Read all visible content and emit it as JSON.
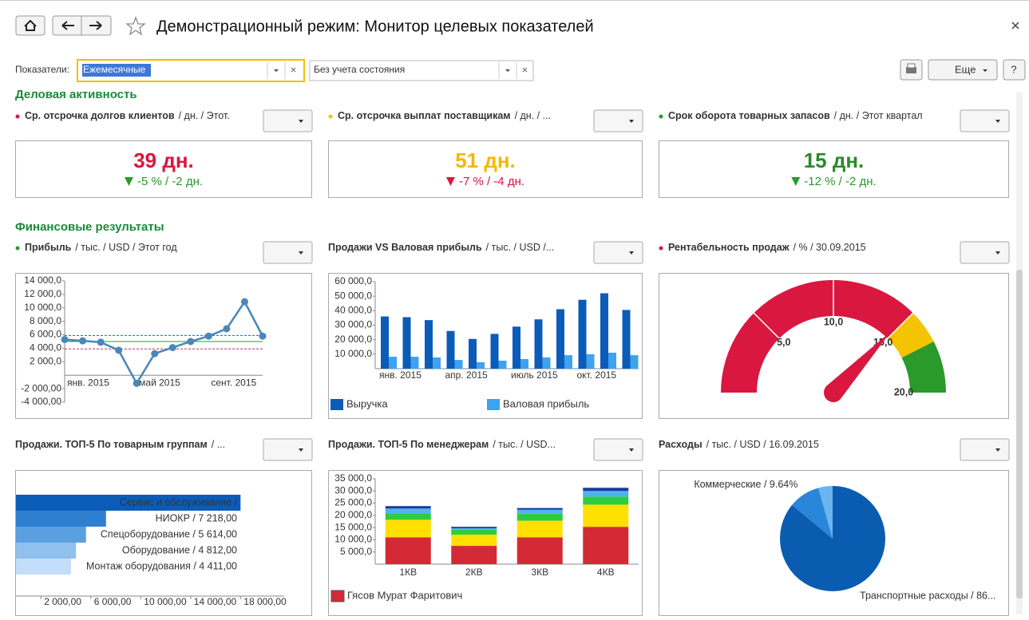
{
  "header": {
    "title": "Демонстрационный режим: Монитор целевых показателей"
  },
  "filters": {
    "label": "Показатели:",
    "period": "Ежемесячные",
    "state": "Без учета состояния",
    "more": "Еще",
    "help": "?"
  },
  "sections": [
    {
      "title": "Деловая активность",
      "widgets": [
        {
          "type": "kpi",
          "status_color": "#d9173f",
          "title": "Ср. отсрочка долгов клиентов",
          "subtitle": "/ дн. / Этот.",
          "value": "39 дн.",
          "value_color": "#d9173f",
          "change": "-5 % / -2 дн.",
          "change_color": "#2a9a2a"
        },
        {
          "type": "kpi",
          "status_color": "#f5c400",
          "title": "Ср. отсрочка выплат поставщикам",
          "subtitle": "/ дн. / ...",
          "value": "51 дн.",
          "value_color": "#f5b800",
          "change": "-7 % / -4 дн.",
          "change_color": "#d9173f"
        },
        {
          "type": "kpi",
          "status_color": "#2a9a2a",
          "title": "Срок оборота товарных запасов",
          "subtitle": "/ дн. / Этот квартал",
          "value": "15 дн.",
          "value_color": "#2a8a2a",
          "change": "-12 % / -2 дн.",
          "change_color": "#2a9a2a"
        }
      ]
    },
    {
      "title": "Финансовые результаты",
      "widgets": [
        {
          "type": "line",
          "status_color": "#2a9a2a",
          "title": "Прибыль",
          "subtitle": "/ тыс. / USD / Этот год",
          "categories": [
            "янв. 2015",
            null,
            null,
            null,
            "май 2015",
            null,
            null,
            null,
            "сент. 2015",
            null,
            null,
            null
          ],
          "series": [
            {
              "color": "#4a86b8",
              "values": [
                5300,
                5100,
                4900,
                3700,
                -1200,
                3200,
                4100,
                5000,
                5800,
                6900,
                10900,
                5800
              ]
            }
          ],
          "reference_lines": [
            {
              "value": 5900,
              "color": "#2a5db0",
              "dash": true
            },
            {
              "value": 5000,
              "color": "#2e9a3a",
              "dash": false
            },
            {
              "value": 3900,
              "color": "#b0306a",
              "dash": true
            }
          ],
          "ylim": [
            -4000,
            14000
          ],
          "yticks": [
            {
              "value": 14000,
              "label": "14 000,0"
            },
            {
              "value": 12000,
              "label": "12 000,0"
            },
            {
              "value": 10000,
              "label": "10 000,0"
            },
            {
              "value": 8000,
              "label": "8 000,0"
            },
            {
              "value": 6000,
              "label": "6 000,0"
            },
            {
              "value": 4000,
              "label": "4 000,0"
            },
            {
              "value": 2000,
              "label": "2 000,0"
            },
            {
              "value": -2000,
              "label": "-2 000,00"
            },
            {
              "value": -4000,
              "label": "-4 000,00"
            }
          ]
        },
        {
          "type": "bar",
          "title": "Продажи VS Валовая прибыль",
          "subtitle": "/ тыс. / USD /...",
          "categories": [
            "янв. 2015",
            null,
            null,
            "апр. 2015",
            null,
            null,
            "июль 2015",
            null,
            null,
            "окт. 2015",
            null,
            null
          ],
          "series": [
            {
              "name": "Выручка",
              "color": "#0b5cb8",
              "values": [
                36000,
                35500,
                33500,
                26000,
                20500,
                24000,
                29000,
                34000,
                41000,
                47500,
                52000,
                40500
              ]
            },
            {
              "name": "Валовая прибыль",
              "color": "#3ea2f0",
              "values": [
                8200,
                8200,
                7700,
                6000,
                4400,
                5500,
                6600,
                7700,
                9300,
                9900,
                11000,
                9300
              ]
            }
          ],
          "ylim": [
            0,
            60000
          ],
          "yticks": [
            {
              "value": 10000,
              "label": "10 000,0"
            },
            {
              "value": 20000,
              "label": "20 000,0"
            },
            {
              "value": 30000,
              "label": "30 000,0"
            },
            {
              "value": 40000,
              "label": "40 000,0"
            },
            {
              "value": 50000,
              "label": "50 000,0"
            },
            {
              "value": 60000,
              "label": "60 000,0"
            }
          ]
        },
        {
          "type": "gauge",
          "status_color": "#d9173f",
          "title": "Рентабельность продаж",
          "subtitle": "/ % / 30.09.2015",
          "value": 14.8,
          "lim": [
            0,
            20
          ],
          "ticks": [
            {
              "value": 5,
              "label": "5,0"
            },
            {
              "value": 10,
              "label": "10,0"
            },
            {
              "value": 15,
              "label": "15,0"
            },
            {
              "value": 20,
              "label": "20,0"
            }
          ],
          "bands": [
            {
              "from": 0,
              "to": 15,
              "color": "#d9173f"
            },
            {
              "from": 15,
              "to": 17,
              "color": "#f5c400"
            },
            {
              "from": 17,
              "to": 20,
              "color": "#2a9a2a"
            }
          ],
          "needle_color": "#d9173f"
        },
        {
          "type": "hbar",
          "title": "Продажи. ТОП-5 По товарным группам",
          "subtitle": "/ ...",
          "categories": [
            "Сервис и обслуживание /",
            "НИОКР / 7 218,00",
            "Спецоборудование / 5 614,00",
            "Оборудование / 4 812,00",
            "Монтаж оборудования / 4 411,00"
          ],
          "values": [
            18000,
            7218,
            5614,
            4812,
            4411
          ],
          "colors": [
            "#0b5cb8",
            "#2f7fd0",
            "#5a9fe0",
            "#8fc0ee",
            "#c4defa"
          ],
          "xlim": [
            0,
            21500
          ],
          "xticks": [
            {
              "value": 2000,
              "label": "2 000,00"
            },
            {
              "value": 6000,
              "label": "6 000,00"
            },
            {
              "value": 10000,
              "label": "10 000,00"
            },
            {
              "value": 14000,
              "label": "14 000,00"
            },
            {
              "value": 18000,
              "label": "18 000,00"
            }
          ]
        },
        {
          "type": "stacked_bar",
          "title": "Продажи. ТОП-5 По менеджерам",
          "subtitle": "/ тыс. / USD...",
          "categories": [
            "1КВ",
            "2КВ",
            "3КВ",
            "4КВ"
          ],
          "series": [
            {
              "name": "Гясов Мурат Фаритович",
              "color": "#d42a35",
              "values": [
                11000,
                7500,
                11000,
                15300
              ]
            },
            {
              "color": "#ffe000",
              "values": [
                7200,
                4600,
                6800,
                9100
              ]
            },
            {
              "color": "#2ecc40",
              "values": [
                2600,
                2000,
                2900,
                3300
              ]
            },
            {
              "color": "#4fb3f0",
              "values": [
                2000,
                600,
                1600,
                2300
              ]
            },
            {
              "color": "#1a3a9a",
              "values": [
                1000,
                600,
                700,
                1300
              ]
            }
          ],
          "ylim": [
            0,
            35000
          ],
          "yticks": [
            {
              "value": 5000,
              "label": "5 000,0"
            },
            {
              "value": 10000,
              "label": "10 000,0"
            },
            {
              "value": 15000,
              "label": "15 000,0"
            },
            {
              "value": 20000,
              "label": "20 000,0"
            },
            {
              "value": 25000,
              "label": "25 000,0"
            },
            {
              "value": 30000,
              "label": "30 000,0"
            },
            {
              "value": 35000,
              "label": "35 000,0"
            }
          ]
        },
        {
          "type": "pie",
          "title": "Расходы",
          "subtitle": "/ тыс. / USD / 16.09.2015",
          "categories": [
            "Транспортные расходы / 86...",
            "Коммерческие / 9.64%",
            null
          ],
          "values": [
            86,
            9.64,
            4.36
          ],
          "colors": [
            "#0a5cb0",
            "#2a86d8",
            "#6ab4f0"
          ]
        }
      ]
    }
  ]
}
